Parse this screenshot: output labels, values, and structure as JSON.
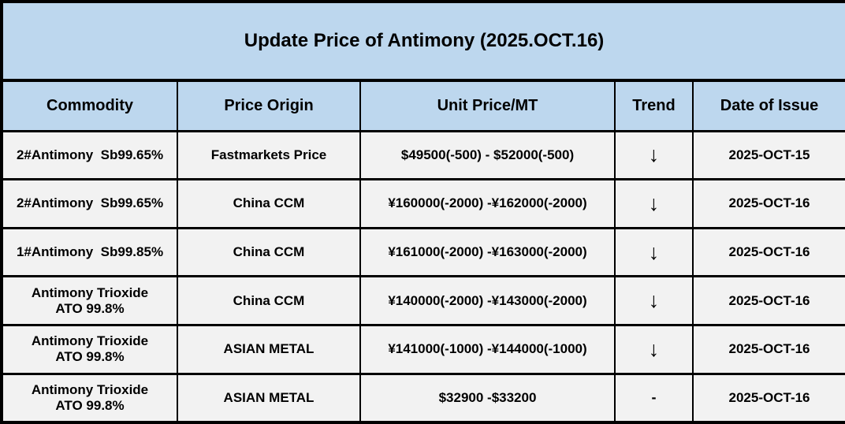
{
  "chart_data": {
    "type": "table",
    "title": "Update Price of Antimony (2025.OCT.16)",
    "columns": [
      "Commodity",
      "Price Origin",
      "Unit Price/MT",
      "Trend",
      "Date of Issue"
    ],
    "rows": [
      [
        "2#Antimony  Sb99.65%",
        "Fastmarkets Price",
        "$49500(-500) - $52000(-500)",
        "↓",
        "2025-OCT-15"
      ],
      [
        "2#Antimony  Sb99.65%",
        "China CCM",
        "¥160000(-2000) -¥162000(-2000)",
        "↓",
        "2025-OCT-16"
      ],
      [
        "1#Antimony  Sb99.85%",
        "China CCM",
        "¥161000(-2000) -¥163000(-2000)",
        "↓",
        "2025-OCT-16"
      ],
      [
        "Antimony Trioxide\nATO 99.8%",
        "China CCM",
        "¥140000(-2000) -¥143000(-2000)",
        "↓",
        "2025-OCT-16"
      ],
      [
        "Antimony Trioxide\nATO 99.8%",
        "ASIAN METAL",
        "¥141000(-1000) -¥144000(-1000)",
        "↓",
        "2025-OCT-16"
      ],
      [
        "Antimony Trioxide\nATO 99.8%",
        "ASIAN METAL",
        "$32900 -$33200",
        "-",
        "2025-OCT-16"
      ]
    ],
    "colors": {
      "header_background": "#BDD7EE",
      "row_background": "#F2F2F2",
      "border": "#000000",
      "text": "#000000"
    },
    "legend_position": "none",
    "grid": "on"
  }
}
